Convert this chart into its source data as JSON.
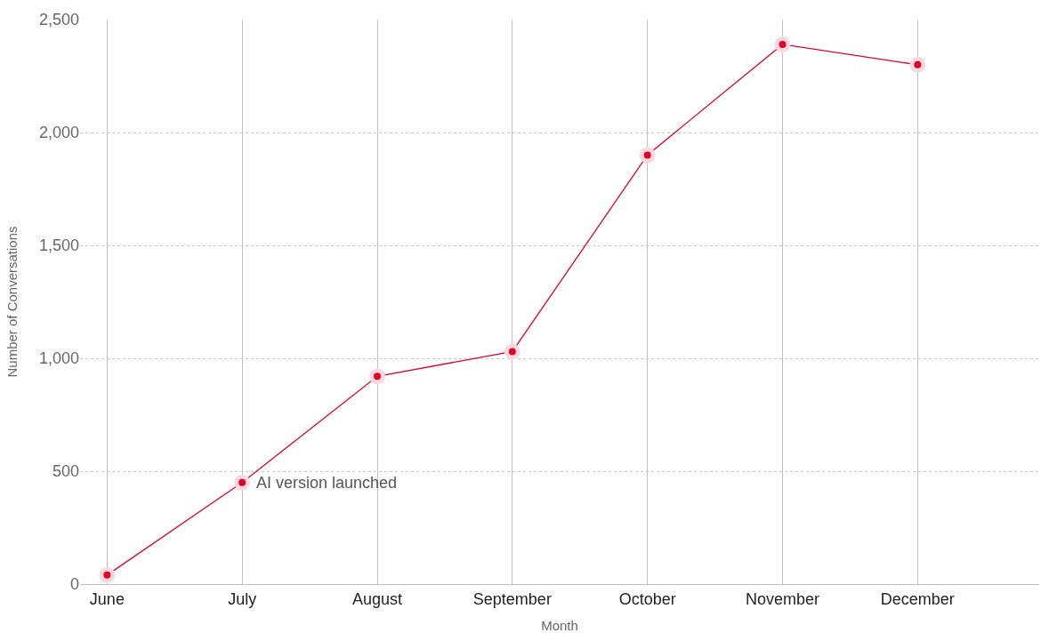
{
  "chart_data": {
    "type": "line",
    "xlabel": "Month",
    "ylabel": "Number of Conversations",
    "categories": [
      "June",
      "July",
      "August",
      "September",
      "October",
      "November",
      "December"
    ],
    "series": [
      {
        "color": "#e0002a",
        "values": [
          40,
          450,
          920,
          1030,
          1900,
          2390,
          2300
        ]
      }
    ],
    "ylim": [
      0,
      2500
    ],
    "yticks": [
      0,
      {
        "value": 500,
        "label": "500"
      },
      {
        "value": 1000,
        "label": "1,000"
      },
      {
        "value": 1500,
        "label": "1,500"
      },
      {
        "value": 2000,
        "label": "2,000"
      },
      {
        "value": 2500,
        "label": "2,500"
      }
    ],
    "grid": true,
    "marker": "circle",
    "line_style": "solid",
    "annotations": [
      {
        "text": "AI version launched",
        "x": "July",
        "y": 450
      }
    ]
  }
}
